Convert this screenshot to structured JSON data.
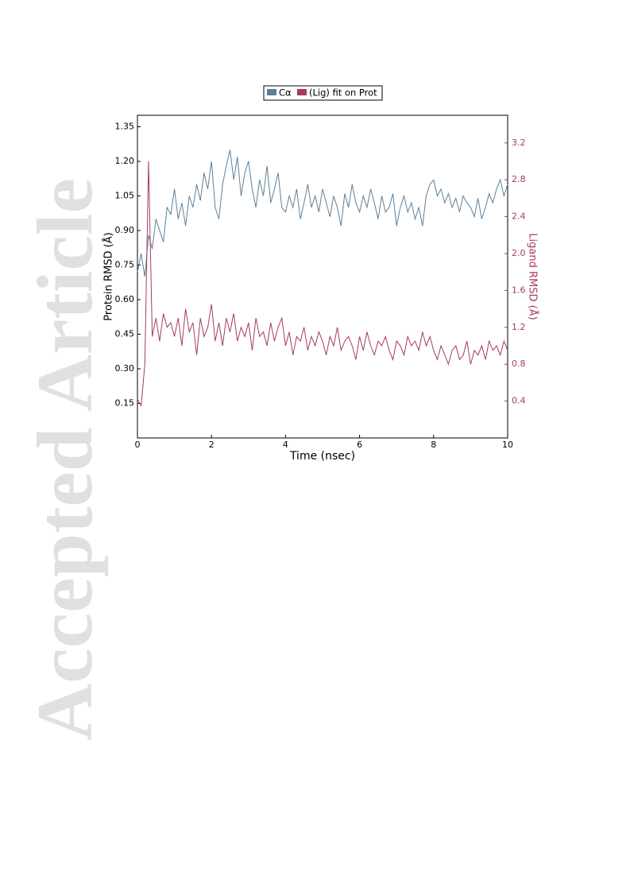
{
  "watermark": "Accepted Article",
  "chart_data": {
    "type": "line",
    "xlabel": "Time (nsec)",
    "ylabel": "Protein RMSD (Å)",
    "y2label": "Ligand RMSD (Å)",
    "xlim": [
      0,
      10
    ],
    "ylim": [
      0,
      1.4
    ],
    "y2lim": [
      0,
      3.5
    ],
    "xticks": [
      0,
      2,
      4,
      6,
      8,
      10
    ],
    "yticks": [
      0.15,
      {
        "value": 0.3,
        "label": "0.30"
      },
      0.45,
      {
        "value": 0.6,
        "label": "0.60"
      },
      0.75,
      {
        "value": 0.9,
        "label": "0.90"
      },
      1.05,
      {
        "value": 1.2,
        "label": "1.20"
      },
      1.35
    ],
    "y2ticks": [
      0.4,
      0.8,
      1.2,
      1.6,
      {
        "value": 2,
        "label": "2.0"
      },
      2.4,
      2.8,
      3.2
    ],
    "legend": "top",
    "x": [
      0,
      0.1,
      0.2,
      0.3,
      0.4,
      0.5,
      0.6,
      0.7,
      0.8,
      0.9,
      1,
      1.1,
      1.2,
      1.3,
      1.4,
      1.5,
      1.6,
      1.7,
      1.8,
      1.9,
      2,
      2.1,
      2.2,
      2.3,
      2.4,
      2.5,
      2.6,
      2.7,
      2.8,
      2.9,
      3,
      3.1,
      3.2,
      3.3,
      3.4,
      3.5,
      3.6,
      3.7,
      3.8,
      3.9,
      4,
      4.1,
      4.2,
      4.3,
      4.4,
      4.5,
      4.6,
      4.7,
      4.8,
      4.9,
      5,
      5.1,
      5.2,
      5.3,
      5.4,
      5.5,
      5.6,
      5.7,
      5.8,
      5.9,
      6,
      6.1,
      6.2,
      6.3,
      6.4,
      6.5,
      6.6,
      6.7,
      6.8,
      6.9,
      7,
      7.1,
      7.2,
      7.3,
      7.4,
      7.5,
      7.6,
      7.7,
      7.8,
      7.9,
      8,
      8.1,
      8.2,
      8.3,
      8.4,
      8.5,
      8.6,
      8.7,
      8.8,
      8.9,
      9,
      9.1,
      9.2,
      9.3,
      9.4,
      9.5,
      9.6,
      9.7,
      9.8,
      9.9,
      10
    ],
    "series": [
      {
        "name": "Cα",
        "color": "#5b7f99",
        "axis": "y",
        "values": [
          0.72,
          0.8,
          0.7,
          0.88,
          0.82,
          0.95,
          0.9,
          0.85,
          1.0,
          0.97,
          1.08,
          0.95,
          1.02,
          0.92,
          1.05,
          1.0,
          1.1,
          1.03,
          1.15,
          1.08,
          1.2,
          1.0,
          0.95,
          1.1,
          1.18,
          1.25,
          1.12,
          1.22,
          1.05,
          1.15,
          1.2,
          1.08,
          1.0,
          1.12,
          1.05,
          1.18,
          1.02,
          1.08,
          1.15,
          1.0,
          0.98,
          1.05,
          1.0,
          1.08,
          0.95,
          1.02,
          1.1,
          1.0,
          1.05,
          0.98,
          1.08,
          1.02,
          0.96,
          1.05,
          1.0,
          0.92,
          1.06,
          1.0,
          1.1,
          1.02,
          0.98,
          1.05,
          1.0,
          1.08,
          1.02,
          0.95,
          1.05,
          0.98,
          1.0,
          1.06,
          0.92,
          1.0,
          1.05,
          0.98,
          1.02,
          0.95,
          1.0,
          0.92,
          1.05,
          1.1,
          1.12,
          1.05,
          1.08,
          1.02,
          1.06,
          1.0,
          1.04,
          0.98,
          1.05,
          1.02,
          1.0,
          0.96,
          1.04,
          0.95,
          1.0,
          1.06,
          1.02,
          1.08,
          1.12,
          1.05,
          1.1
        ]
      },
      {
        "name": "(Lig) fit on Prot",
        "color": "#a63a5e",
        "axis": "y2",
        "values": [
          0.42,
          0.35,
          0.8,
          3.0,
          1.1,
          1.3,
          1.05,
          1.35,
          1.2,
          1.25,
          1.1,
          1.3,
          1.0,
          1.4,
          1.15,
          1.25,
          0.9,
          1.3,
          1.1,
          1.2,
          1.45,
          1.05,
          1.25,
          1.0,
          1.3,
          1.15,
          1.35,
          1.05,
          1.2,
          1.1,
          1.25,
          0.95,
          1.3,
          1.1,
          1.15,
          1.0,
          1.25,
          1.05,
          1.2,
          1.3,
          1.0,
          1.15,
          0.9,
          1.1,
          1.05,
          1.2,
          0.95,
          1.1,
          1.0,
          1.15,
          1.05,
          0.9,
          1.1,
          1.0,
          1.2,
          0.95,
          1.05,
          1.1,
          1.0,
          0.85,
          1.1,
          0.95,
          1.15,
          1.0,
          0.9,
          1.05,
          1.0,
          1.1,
          0.95,
          0.85,
          1.05,
          1.0,
          0.9,
          1.1,
          1.0,
          1.05,
          0.95,
          1.15,
          1.0,
          1.1,
          0.95,
          0.85,
          1.0,
          0.9,
          0.8,
          0.95,
          1.0,
          0.85,
          0.9,
          1.05,
          0.8,
          0.95,
          0.9,
          1.0,
          0.85,
          1.05,
          0.95,
          1.0,
          0.9,
          1.05,
          0.95
        ]
      }
    ]
  }
}
